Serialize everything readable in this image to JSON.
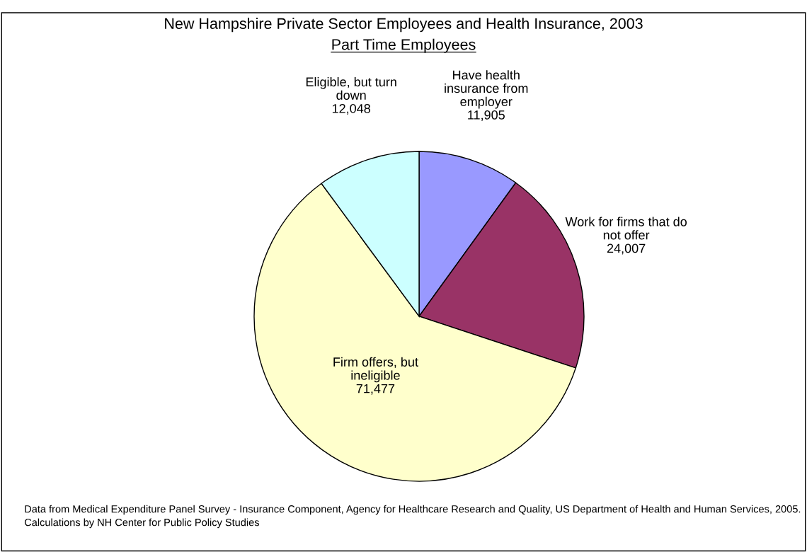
{
  "chart_data": {
    "type": "pie",
    "title": "New Hampshire Private Sector Employees and Health Insurance, 2003",
    "subtitle": "Part Time Employees",
    "categories": [
      "Have health\ninsurance from\nemployer",
      "Work for firms that do\nnot offer",
      "Firm offers, but\nineligible",
      "Eligible, but turn\ndown"
    ],
    "values": [
      11905,
      24007,
      71477,
      12048
    ],
    "value_labels": [
      "11,905",
      "24,007",
      "71,477",
      "12,048"
    ],
    "colors": [
      "#9999ff",
      "#993366",
      "#ffffcc",
      "#ccffff"
    ],
    "legend": false,
    "annotations": [
      "Data from Medical Expenditure Panel Survey - Insurance Component, Agency for Healthcare Research and Quality, US Department of Health and Human Services, 2005. Calculations by NH Center for Public Policy Studies"
    ]
  }
}
